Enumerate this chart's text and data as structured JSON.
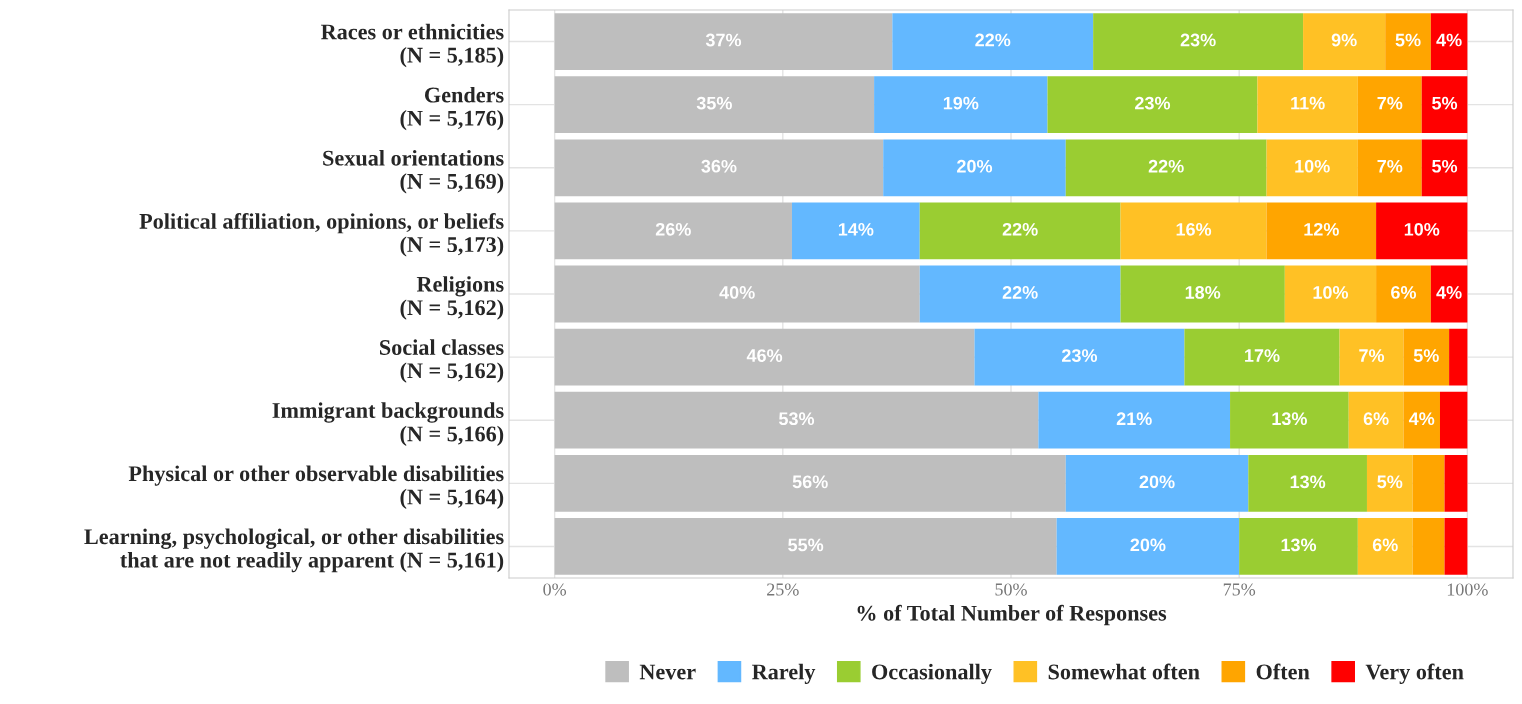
{
  "chart_data": {
    "type": "bar",
    "orientation": "horizontal",
    "stacked": true,
    "xlabel": "% of Total Number of Responses",
    "categories": [
      "Races or ethnicities\n(N = 5,185)",
      "Genders\n(N = 5,176)",
      "Sexual orientations\n(N = 5,169)",
      "Political affiliation, opinions, or beliefs\n(N = 5,173)",
      "Religions\n(N = 5,162)",
      "Social classes\n(N = 5,162)",
      "Immigrant backgrounds\n(N = 5,166)",
      "Physical or other observable disabilities\n(N = 5,164)",
      "Learning, psychological, or other disabilities\nthat are not readily apparent (N = 5,161)"
    ],
    "series": [
      {
        "name": "Never",
        "color": "#bebebe",
        "values": [
          37,
          35,
          36,
          26,
          40,
          46,
          53,
          56,
          55
        ],
        "value_labels": [
          "37%",
          "35%",
          "36%",
          "26%",
          "40%",
          "46%",
          "53%",
          "56%",
          "55%"
        ]
      },
      {
        "name": "Rarely",
        "color": "#63b8ff",
        "values": [
          22,
          19,
          20,
          14,
          22,
          23,
          21,
          20,
          20
        ],
        "value_labels": [
          "22%",
          "19%",
          "20%",
          "14%",
          "22%",
          "23%",
          "21%",
          "20%",
          "20%"
        ]
      },
      {
        "name": "Occasionally",
        "color": "#9acd32",
        "values": [
          23,
          23,
          22,
          22,
          18,
          17,
          13,
          13,
          13
        ],
        "value_labels": [
          "23%",
          "23%",
          "22%",
          "22%",
          "18%",
          "17%",
          "13%",
          "13%",
          "13%"
        ]
      },
      {
        "name": "Somewhat often",
        "color": "#ffc125",
        "values": [
          9,
          11,
          10,
          16,
          10,
          7,
          6,
          5,
          6
        ],
        "value_labels": [
          "9%",
          "11%",
          "10%",
          "16%",
          "10%",
          "7%",
          "6%",
          "5%",
          "6%"
        ]
      },
      {
        "name": "Often",
        "color": "#ffa500",
        "values": [
          5,
          7,
          7,
          12,
          6,
          5,
          4,
          3.5,
          3.5
        ],
        "value_labels": [
          "5%",
          "7%",
          "7%",
          "12%",
          "6%",
          "5%",
          "4%",
          null,
          null
        ]
      },
      {
        "name": "Very often",
        "color": "#ff0000",
        "values": [
          4,
          5,
          5,
          10,
          4,
          2,
          3,
          2.5,
          2.5
        ],
        "value_labels": [
          "4%",
          "5%",
          "5%",
          "10%",
          "4%",
          null,
          null,
          null,
          null
        ]
      }
    ],
    "xlim": [
      -5,
      105
    ],
    "xticks": [
      {
        "value": 0,
        "label": "0%"
      },
      {
        "value": 25,
        "label": "25%"
      },
      {
        "value": 50,
        "label": "50%"
      },
      {
        "value": 75,
        "label": "75%"
      },
      {
        "value": 100,
        "label": "100%"
      }
    ],
    "grid": true,
    "legend": "bottom"
  }
}
